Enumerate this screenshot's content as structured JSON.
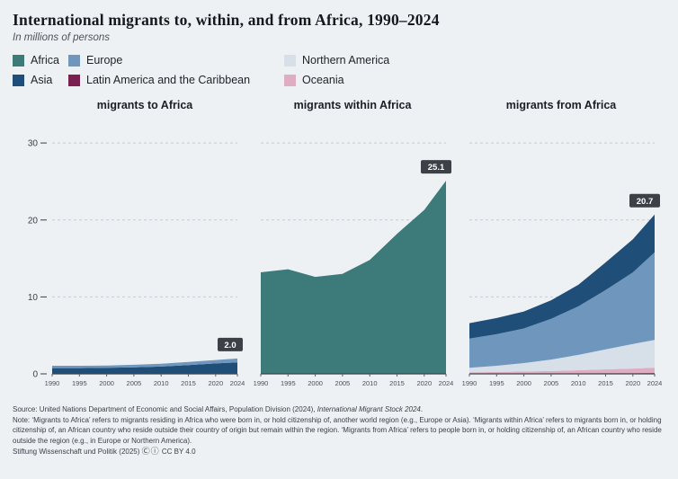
{
  "header": {
    "title": "International migrants to, within, and from Africa, 1990–2024",
    "subtitle": "In millions of persons"
  },
  "colors": {
    "Africa": "#3d7a7a",
    "Europe": "#6f96bd",
    "Northern America": "#d7dfe8",
    "Asia": "#1f4e79",
    "Latin America and the Caribbean": "#7b2150",
    "Oceania": "#dfadc2",
    "badge": "#3b4147",
    "gridline": "#c5cbd2",
    "axis": "#3f454b"
  },
  "legend": {
    "items": [
      {
        "label": "Africa",
        "key": "Africa"
      },
      {
        "label": "Europe",
        "key": "Europe"
      },
      {
        "label": "Northern America",
        "key": "Northern America"
      },
      {
        "label": "Asia",
        "key": "Asia"
      },
      {
        "label": "Latin America and the Caribbean",
        "key": "Latin America and the Caribbean"
      },
      {
        "label": "Oceania",
        "key": "Oceania"
      }
    ]
  },
  "chart_data": [
    {
      "type": "area",
      "stacked": true,
      "title": "migrants to Africa",
      "x": [
        1990,
        1995,
        2000,
        2005,
        2010,
        2015,
        2020,
        2024
      ],
      "series": [
        {
          "name": "Asia",
          "values": [
            0.75,
            0.75,
            0.78,
            0.85,
            0.95,
            1.15,
            1.35,
            1.5
          ]
        },
        {
          "name": "Europe",
          "values": [
            0.3,
            0.3,
            0.3,
            0.33,
            0.36,
            0.4,
            0.45,
            0.5
          ]
        }
      ],
      "end_label": "2.0",
      "ylim": [
        0,
        32
      ],
      "y_ticks": [
        0,
        10,
        20,
        30
      ],
      "y_gridlines": [
        10,
        20,
        30
      ],
      "grid": "dashed",
      "legend_position": "top"
    },
    {
      "type": "area",
      "stacked": true,
      "title": "migrants within Africa",
      "x": [
        1990,
        1995,
        2000,
        2005,
        2010,
        2015,
        2020,
        2024
      ],
      "series": [
        {
          "name": "Africa",
          "values": [
            13.2,
            13.6,
            12.6,
            13.0,
            14.8,
            18.2,
            21.3,
            25.1
          ]
        }
      ],
      "end_label": "25.1",
      "ylim": [
        0,
        32
      ],
      "y_ticks": [
        0,
        10,
        20,
        30
      ],
      "y_gridlines": [
        10,
        20,
        30
      ],
      "grid": "dashed",
      "legend_position": "top"
    },
    {
      "type": "area",
      "stacked": true,
      "title": "migrants from Africa",
      "x": [
        1990,
        1995,
        2000,
        2005,
        2010,
        2015,
        2020,
        2024
      ],
      "series": [
        {
          "name": "Latin America and the Caribbean",
          "values": [
            0.04,
            0.05,
            0.05,
            0.06,
            0.07,
            0.08,
            0.09,
            0.1
          ]
        },
        {
          "name": "Oceania",
          "values": [
            0.15,
            0.2,
            0.25,
            0.3,
            0.4,
            0.5,
            0.6,
            0.7
          ]
        },
        {
          "name": "Northern America",
          "values": [
            0.6,
            0.8,
            1.1,
            1.5,
            2.0,
            2.6,
            3.2,
            3.6
          ]
        },
        {
          "name": "Europe",
          "values": [
            3.8,
            4.1,
            4.5,
            5.3,
            6.3,
            7.7,
            9.3,
            11.4
          ]
        },
        {
          "name": "Asia",
          "values": [
            2.0,
            2.1,
            2.2,
            2.4,
            2.8,
            3.6,
            4.3,
            4.9
          ]
        }
      ],
      "end_label": "20.7",
      "ylim": [
        0,
        32
      ],
      "y_ticks": [
        0,
        10,
        20,
        30
      ],
      "y_gridlines": [
        10,
        20,
        30
      ],
      "grid": "dashed",
      "legend_position": "top"
    }
  ],
  "footer": {
    "source_prefix": "Source: United Nations Department of Economic and Social Affairs, Population Division (2024), ",
    "source_italic": "International Migrant Stock 2024",
    "source_suffix": ".",
    "note": "Note: ‘Migrants to Africa’ refers to migrants residing in Africa who were born in, or hold citizenship of, another world region (e.g., Europe or Asia). ‘Migrants within Africa’ refers to migrants born in, or holding citizenship of, an African country who reside outside their country of origin but remain within the region. ‘Migrants from Africa’ refers to people born in, or holding citizenship of, an African country who reside outside the region (e.g., in Europe or Northern America).",
    "credit_prefix": "Stiftung Wissenschaft und Politik (2025)",
    "credit_icons": "Ⓒⓘ",
    "credit_license": "CC BY 4.0"
  }
}
